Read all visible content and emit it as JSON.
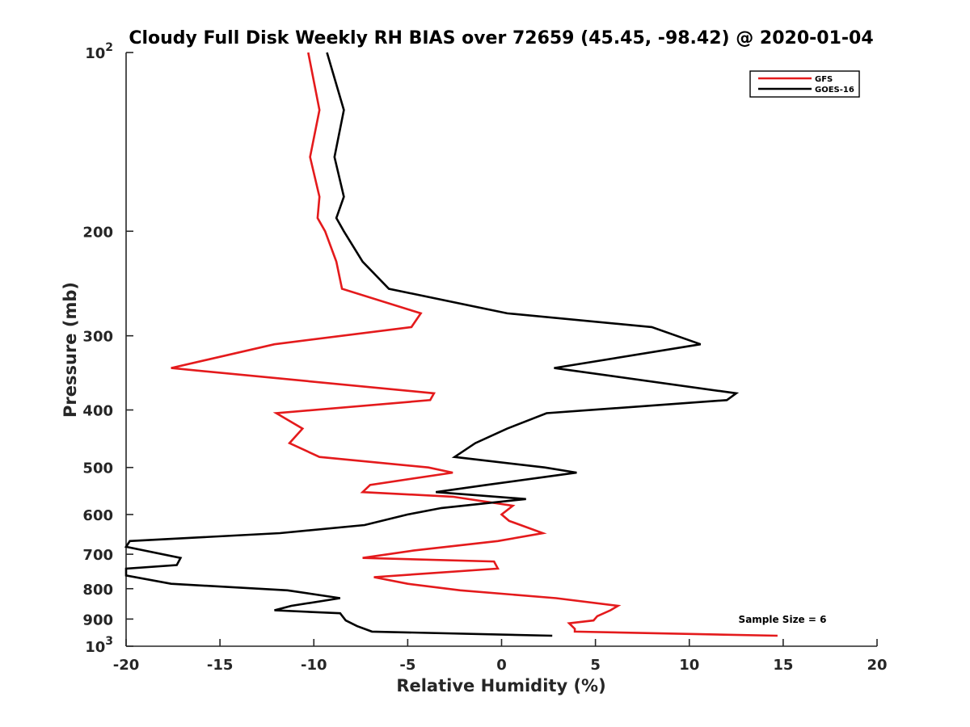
{
  "chart_data": {
    "type": "line",
    "title": "Cloudy Full Disk Weekly RH BIAS over 72659 (45.45, -98.42) @ 2020-01-04",
    "xlabel": "Relative Humidity (%)",
    "ylabel": "Pressure (mb)",
    "xlim": [
      -20,
      20
    ],
    "ylim": [
      100,
      1000
    ],
    "y_scale": "log",
    "y_reversed": true,
    "x_ticks": [
      -20,
      -15,
      -10,
      -5,
      0,
      5,
      10,
      15,
      20
    ],
    "x_tick_labels": [
      "-20",
      "-15",
      "-10",
      "-5",
      "0",
      "5",
      "10",
      "15",
      "20"
    ],
    "y_tick_labels": [
      {
        "value": 100,
        "base": "10",
        "exp": "2"
      },
      {
        "value": 200,
        "base": "200",
        "exp": ""
      },
      {
        "value": 300,
        "base": "300",
        "exp": ""
      },
      {
        "value": 400,
        "base": "400",
        "exp": ""
      },
      {
        "value": 500,
        "base": "500",
        "exp": ""
      },
      {
        "value": 600,
        "base": "600",
        "exp": ""
      },
      {
        "value": 700,
        "base": "700",
        "exp": ""
      },
      {
        "value": 800,
        "base": "800",
        "exp": ""
      },
      {
        "value": 900,
        "base": "900",
        "exp": ""
      },
      {
        "value": 1000,
        "base": "10",
        "exp": "3"
      }
    ],
    "grid": false,
    "legend_position": "top-right",
    "annotation": "Sample Size = 6",
    "series": [
      {
        "name": "GFS",
        "color": "#e41a1c",
        "points": [
          [
            -10.3,
            100
          ],
          [
            -9.7,
            125
          ],
          [
            -10.2,
            150
          ],
          [
            -9.7,
            175
          ],
          [
            -9.8,
            190
          ],
          [
            -9.4,
            200
          ],
          [
            -8.8,
            225
          ],
          [
            -8.5,
            250
          ],
          [
            -4.3,
            275
          ],
          [
            -4.8,
            290
          ],
          [
            -12.1,
            310
          ],
          [
            -17.6,
            340
          ],
          [
            -3.6,
            375
          ],
          [
            -3.8,
            385
          ],
          [
            -12.0,
            405
          ],
          [
            -10.6,
            430
          ],
          [
            -11.3,
            455
          ],
          [
            -9.7,
            480
          ],
          [
            -3.9,
            500
          ],
          [
            -2.6,
            510
          ],
          [
            -7.0,
            535
          ],
          [
            -7.4,
            550
          ],
          [
            -2.6,
            560
          ],
          [
            0.6,
            580
          ],
          [
            0.0,
            600
          ],
          [
            0.4,
            615
          ],
          [
            2.2,
            645
          ],
          [
            -0.2,
            665
          ],
          [
            -4.7,
            690
          ],
          [
            -7.4,
            710
          ],
          [
            -0.4,
            720
          ],
          [
            -0.2,
            740
          ],
          [
            -6.8,
            765
          ],
          [
            -5.0,
            785
          ],
          [
            -2.2,
            805
          ],
          [
            2.9,
            830
          ],
          [
            6.2,
            855
          ],
          [
            5.8,
            870
          ],
          [
            5.1,
            890
          ],
          [
            4.9,
            905
          ],
          [
            3.6,
            915
          ],
          [
            3.9,
            935
          ],
          [
            3.9,
            945
          ],
          [
            14.7,
            960
          ]
        ]
      },
      {
        "name": "GOES-16",
        "color": "#000000",
        "points": [
          [
            -9.3,
            100
          ],
          [
            -8.4,
            125
          ],
          [
            -8.9,
            150
          ],
          [
            -8.4,
            175
          ],
          [
            -8.8,
            190
          ],
          [
            -8.4,
            200
          ],
          [
            -7.4,
            225
          ],
          [
            -6.0,
            250
          ],
          [
            0.3,
            275
          ],
          [
            8.0,
            290
          ],
          [
            10.6,
            310
          ],
          [
            2.8,
            340
          ],
          [
            12.5,
            375
          ],
          [
            12.0,
            385
          ],
          [
            2.4,
            405
          ],
          [
            0.3,
            430
          ],
          [
            -1.4,
            455
          ],
          [
            -2.5,
            480
          ],
          [
            2.3,
            500
          ],
          [
            4.0,
            510
          ],
          [
            -0.8,
            535
          ],
          [
            -3.5,
            550
          ],
          [
            1.3,
            565
          ],
          [
            -3.2,
            585
          ],
          [
            -5.0,
            600
          ],
          [
            -7.3,
            625
          ],
          [
            -11.8,
            645
          ],
          [
            -19.8,
            665
          ],
          [
            -20.0,
            680
          ],
          [
            -17.1,
            710
          ],
          [
            -17.3,
            730
          ],
          [
            -20.0,
            740
          ],
          [
            -20.0,
            760
          ],
          [
            -17.6,
            785
          ],
          [
            -11.4,
            805
          ],
          [
            -8.6,
            830
          ],
          [
            -11.2,
            855
          ],
          [
            -12.1,
            870
          ],
          [
            -8.6,
            880
          ],
          [
            -8.3,
            905
          ],
          [
            -7.7,
            925
          ],
          [
            -6.9,
            945
          ],
          [
            2.7,
            960
          ]
        ]
      }
    ]
  }
}
